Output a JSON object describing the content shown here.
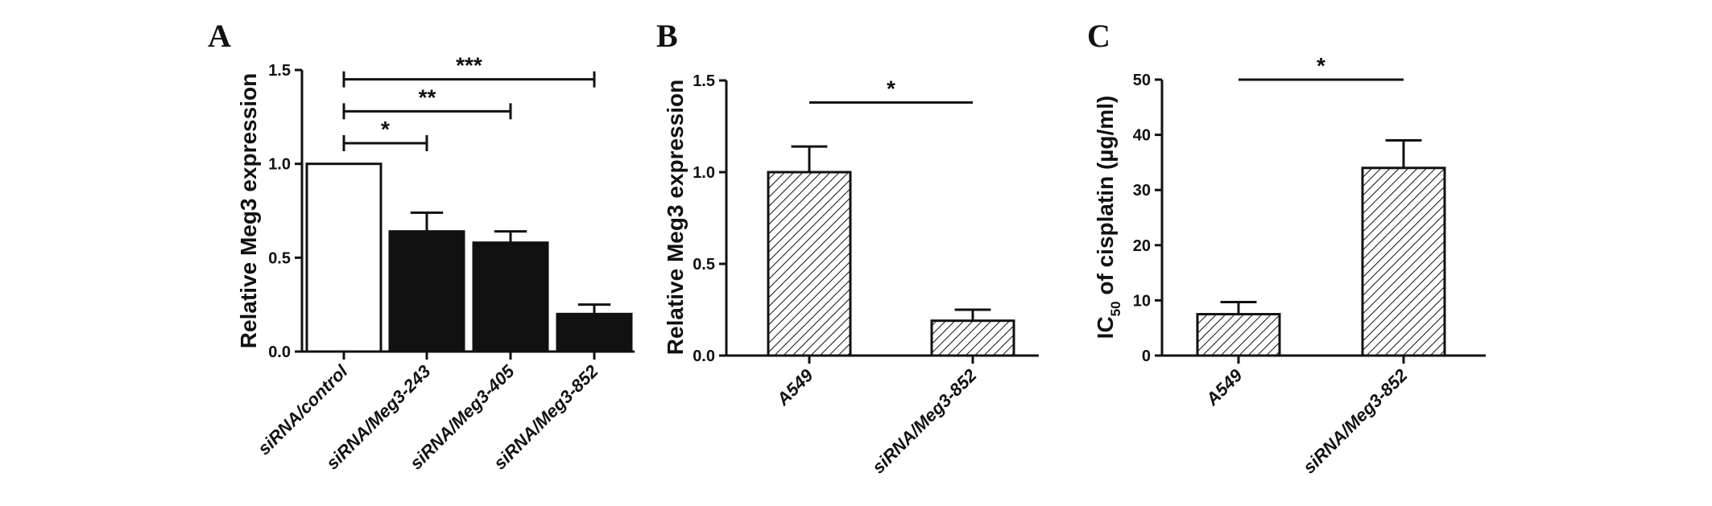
{
  "chart_data": [
    {
      "type": "bar",
      "panel": "A",
      "ylabel": "Relative Meg3 expression",
      "ylim": [
        0,
        1.5
      ],
      "yticks": [
        "0.0",
        "0.5",
        "1.0",
        "1.5"
      ],
      "categories": [
        "siRNA/control",
        "siRNA/Meg3-243",
        "siRNA/Meg3-405",
        "siRNA/Meg3-852"
      ],
      "values": [
        1.0,
        0.64,
        0.58,
        0.2
      ],
      "errors": [
        0.0,
        0.1,
        0.06,
        0.05
      ],
      "fill": [
        "open",
        "solid",
        "solid",
        "solid"
      ],
      "significance": [
        {
          "from": 0,
          "to": 1,
          "y": 1.11,
          "label": "*"
        },
        {
          "from": 0,
          "to": 2,
          "y": 1.28,
          "label": "**"
        },
        {
          "from": 0,
          "to": 3,
          "y": 1.45,
          "label": "***"
        }
      ]
    },
    {
      "type": "bar",
      "panel": "B",
      "ylabel": "Relative Meg3 expression",
      "ylim": [
        0,
        1.5
      ],
      "yticks": [
        "0.0",
        "0.5",
        "1.0",
        "1.5"
      ],
      "categories": [
        "A549",
        "siRNA/Meg3-852"
      ],
      "values": [
        1.0,
        0.19
      ],
      "errors": [
        0.14,
        0.06
      ],
      "fill": [
        "hatch",
        "hatch"
      ],
      "significance": [
        {
          "from": 0,
          "to": 1,
          "y": 1.38,
          "label": "*"
        }
      ]
    },
    {
      "type": "bar",
      "panel": "C",
      "ylabel": "IC",
      "ylabel_sub": "50",
      "ylabel_rest": " of cisplatin (µg/ml)",
      "ylim": [
        0,
        50
      ],
      "yticks": [
        "0",
        "10",
        "20",
        "30",
        "40",
        "50"
      ],
      "categories": [
        "A549",
        "siRNA/Meg3-852"
      ],
      "values": [
        7.5,
        34
      ],
      "errors": [
        2.2,
        5
      ],
      "fill": [
        "hatch",
        "hatch"
      ],
      "significance": [
        {
          "from": 0,
          "to": 1,
          "y": 50,
          "label": "*"
        }
      ]
    }
  ]
}
